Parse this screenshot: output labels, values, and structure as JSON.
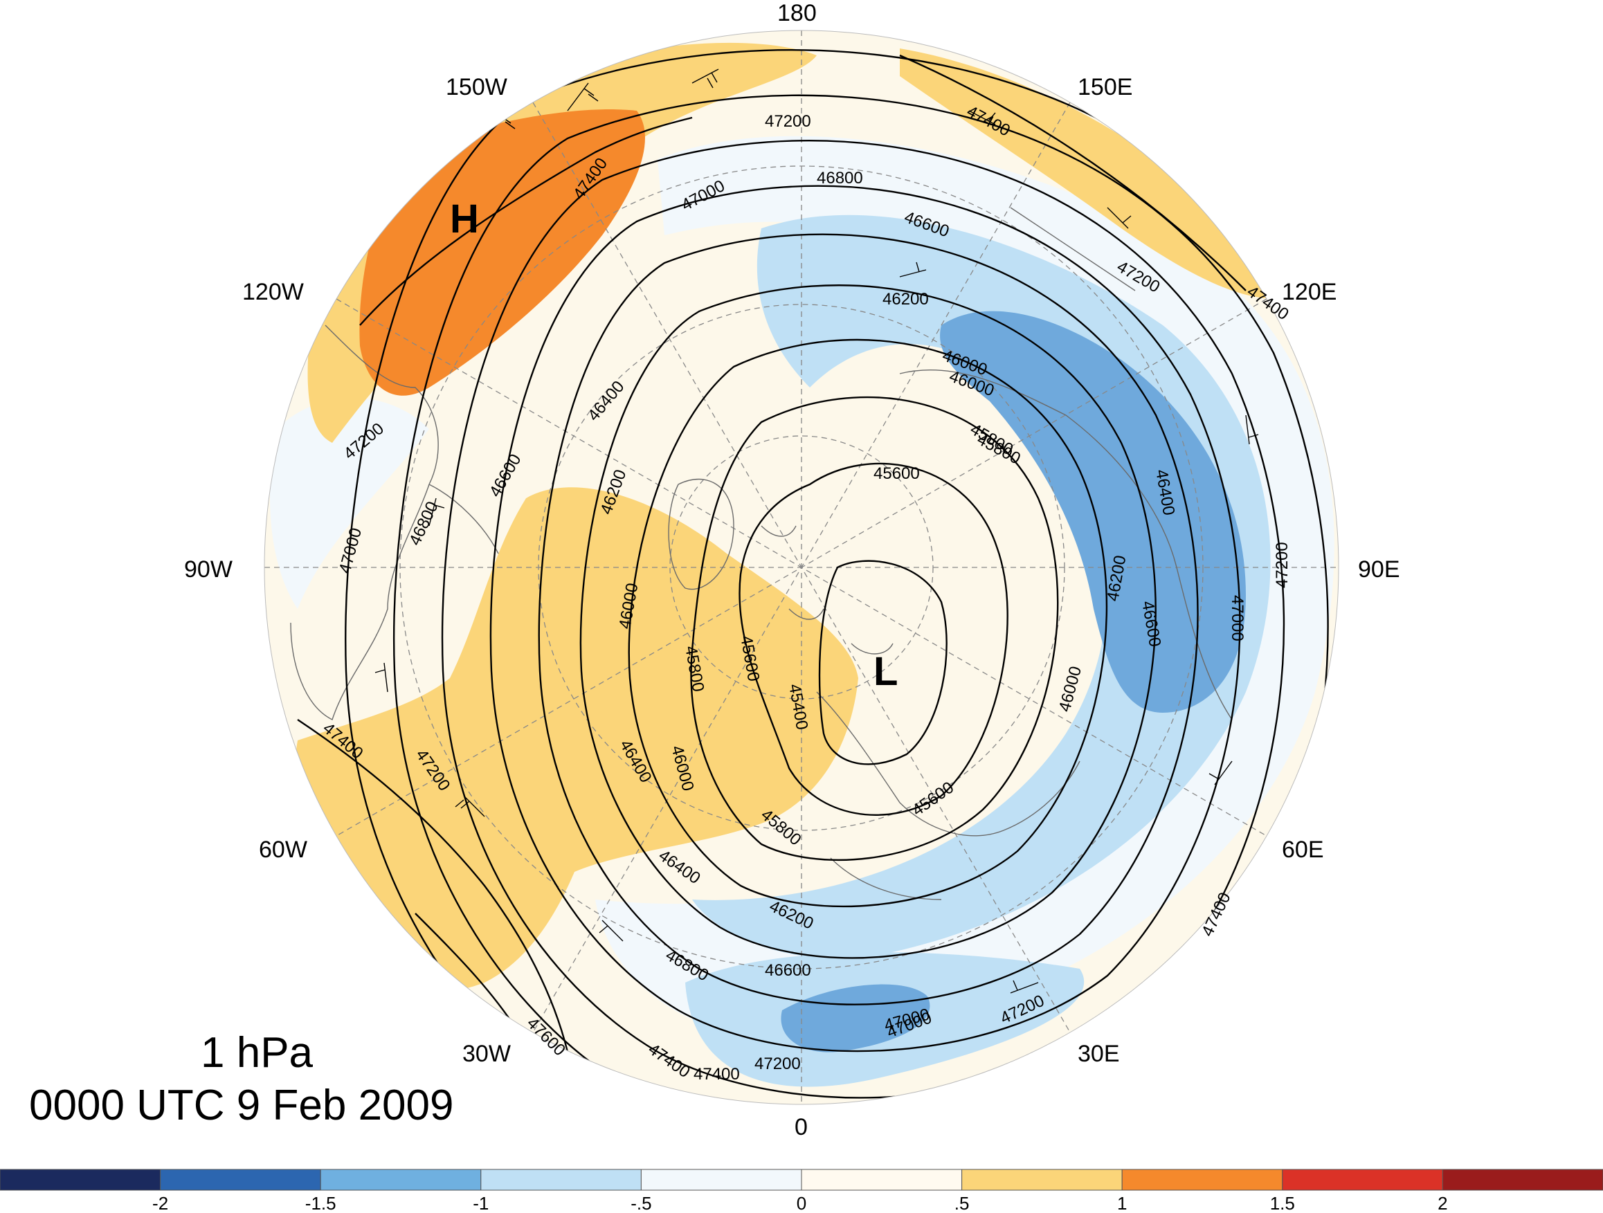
{
  "title": {
    "level": "1 hPa",
    "time": "0000 UTC 9 Feb 2009"
  },
  "longitude_labels": [
    {
      "id": "lon-180",
      "text": "180"
    },
    {
      "id": "lon-150w",
      "text": "150W"
    },
    {
      "id": "lon-150e",
      "text": "150E"
    },
    {
      "id": "lon-120w",
      "text": "120W"
    },
    {
      "id": "lon-120e",
      "text": "120E"
    },
    {
      "id": "lon-90w",
      "text": "90W"
    },
    {
      "id": "lon-90e",
      "text": "90E"
    },
    {
      "id": "lon-60w",
      "text": "60W"
    },
    {
      "id": "lon-60e",
      "text": "60E"
    },
    {
      "id": "lon-30w",
      "text": "30W"
    },
    {
      "id": "lon-30e",
      "text": "30E"
    },
    {
      "id": "lon-0",
      "text": "0"
    }
  ],
  "pressure_centers": {
    "high": "H",
    "low": "L"
  },
  "contour_labels": [
    "47200",
    "47400",
    "47000",
    "46800",
    "46600",
    "46200",
    "46000",
    "45800",
    "45600",
    "46400",
    "47200",
    "47400",
    "47400",
    "47200",
    "47000",
    "46800",
    "46600",
    "46400",
    "46200",
    "46000",
    "45800",
    "45600",
    "45400",
    "45600",
    "45800",
    "46000",
    "46000",
    "46200",
    "46400",
    "46600",
    "46800",
    "47000",
    "47200",
    "47400",
    "47600",
    "47400",
    "47200",
    "47000",
    "47200",
    "47400",
    "47400",
    "47200",
    "47000",
    "46600",
    "46400",
    "46200",
    "46000",
    "45800"
  ],
  "colorbar": {
    "ticks": [
      "-2",
      "-1.5",
      "-1",
      "-.5",
      "0",
      ".5",
      "1",
      "1.5",
      "2"
    ],
    "colors": [
      "#1b2a5e",
      "#2c66b0",
      "#6fb0e0",
      "#bfe0f5",
      "#f2f8fc",
      "#fffaf0",
      "#fbd579",
      "#f5892c",
      "#db3227",
      "#9a1c1c"
    ]
  },
  "anomaly_colors": {
    "pos_low": "#fdf8ea",
    "pos_mid": "#fbd579",
    "pos_high": "#f5892c",
    "neg_low": "#f2f8fc",
    "neg_mid": "#bfe0f5",
    "neg_high": "#6fa9dc"
  }
}
